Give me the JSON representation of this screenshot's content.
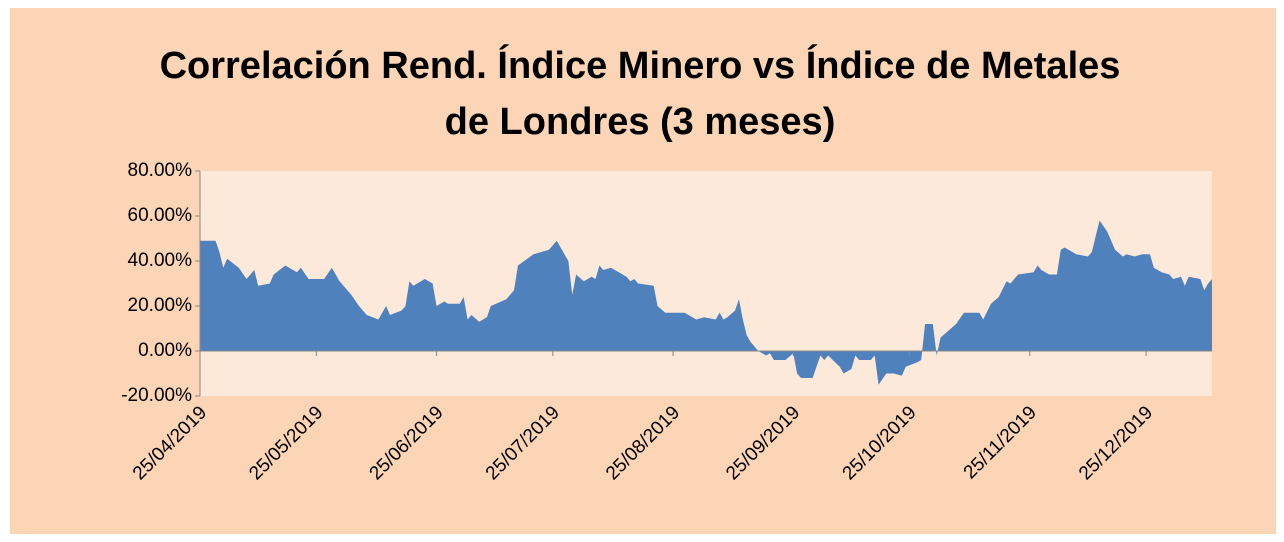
{
  "chart_data": {
    "type": "area",
    "title": "Correlación Rend. Índice Minero vs Índice de Metales de Londres (3 meses)",
    "color": "#4F81BD",
    "x": [
      "25/04/2019",
      "29/04/2019",
      "30/04/2019",
      "01/05/2019",
      "02/05/2019",
      "05/05/2019",
      "07/05/2019",
      "09/05/2019",
      "10/05/2019",
      "13/05/2019",
      "14/05/2019",
      "17/05/2019",
      "20/05/2019",
      "21/05/2019",
      "23/05/2019",
      "25/05/2019",
      "27/05/2019",
      "29/05/2019",
      "31/05/2019",
      "03/06/2019",
      "05/06/2019",
      "07/06/2019",
      "10/06/2019",
      "12/06/2019",
      "13/06/2019",
      "16/06/2019",
      "17/06/2019",
      "18/06/2019",
      "19/06/2019",
      "22/06/2019",
      "24/06/2019",
      "25/06/2019",
      "27/06/2019",
      "28/06/2019",
      "01/07/2019",
      "02/07/2019",
      "03/07/2019",
      "04/07/2019",
      "06/07/2019",
      "08/07/2019",
      "09/07/2019",
      "13/07/2019",
      "15/07/2019",
      "16/07/2019",
      "20/07/2019",
      "24/07/2019",
      "26/07/2019",
      "29/07/2019",
      "30/07/2019",
      "31/07/2019",
      "02/08/2019",
      "04/08/2019",
      "05/08/2019",
      "06/08/2019",
      "07/08/2019",
      "09/08/2019",
      "11/08/2019",
      "13/08/2019",
      "14/08/2019",
      "15/08/2019",
      "16/08/2019",
      "20/08/2019",
      "21/08/2019",
      "23/08/2019",
      "28/08/2019",
      "31/08/2019",
      "02/09/2019",
      "05/09/2019",
      "06/09/2019",
      "07/09/2019",
      "08/09/2019",
      "10/09/2019",
      "11/09/2019",
      "12/09/2019",
      "13/09/2019",
      "14/09/2019",
      "16/09/2019",
      "18/09/2019",
      "19/09/2019",
      "20/09/2019",
      "23/09/2019",
      "25/09/2019",
      "26/09/2019",
      "27/09/2019",
      "30/09/2019",
      "02/10/2019",
      "03/10/2019",
      "04/10/2019",
      "07/10/2019",
      "08/10/2019",
      "10/10/2019",
      "11/10/2019",
      "12/10/2019",
      "15/10/2019",
      "16/10/2019",
      "17/10/2019",
      "19/10/2019",
      "21/10/2019",
      "23/10/2019",
      "24/10/2019",
      "27/10/2019",
      "28/10/2019",
      "29/10/2019",
      "31/10/2019",
      "01/11/2019",
      "02/11/2019",
      "04/11/2019",
      "06/11/2019",
      "08/11/2019",
      "12/11/2019",
      "13/11/2019",
      "15/11/2019",
      "17/11/2019",
      "19/11/2019",
      "20/11/2019",
      "22/11/2019",
      "26/11/2019",
      "27/11/2019",
      "28/11/2019",
      "30/11/2019",
      "02/12/2019",
      "03/12/2019",
      "04/12/2019",
      "07/12/2019",
      "10/12/2019",
      "11/12/2019",
      "13/12/2019",
      "15/12/2019",
      "17/12/2019",
      "19/12/2019",
      "20/12/2019",
      "22/12/2019",
      "24/12/2019",
      "26/12/2019",
      "27/12/2019",
      "29/12/2019",
      "31/12/2019",
      "01/01/2020",
      "03/01/2020",
      "04/01/2020",
      "05/01/2020",
      "08/01/2020",
      "09/01/2020",
      "10/01/2020",
      "11/01/2020"
    ],
    "values": [
      49,
      49,
      44,
      37,
      41,
      37,
      32,
      36,
      29,
      30,
      34,
      38,
      35,
      37,
      32,
      32,
      32,
      37,
      31,
      25,
      20,
      16,
      14,
      20,
      16,
      18,
      20,
      31,
      29,
      32,
      30,
      20,
      22,
      21,
      21,
      24,
      14,
      16,
      13,
      15,
      20,
      23,
      27,
      38,
      43,
      45,
      49,
      40,
      25,
      34,
      31,
      33,
      32,
      38,
      36,
      37,
      35,
      33,
      31,
      32,
      30,
      29,
      20,
      17,
      17,
      14,
      15,
      14,
      17,
      14,
      15,
      18,
      23,
      14,
      7,
      4,
      0,
      -2,
      -1,
      -4,
      -4,
      -1,
      -10,
      -12,
      -12,
      -2,
      -4,
      -2,
      -7,
      -10,
      -8,
      -2,
      -4,
      -4,
      -2,
      -15,
      -10,
      -10,
      -11,
      -7,
      -5,
      -4,
      12,
      12,
      -2,
      6,
      9,
      12,
      17,
      17,
      14,
      21,
      24,
      31,
      30,
      34,
      35,
      38,
      36,
      34,
      34,
      45,
      46,
      43,
      42,
      44,
      58,
      53,
      45,
      42,
      43,
      42,
      43,
      43,
      37,
      35,
      34,
      32,
      33,
      29,
      33,
      32,
      27,
      30,
      32
    ],
    "xlim": [
      "25/04/2019",
      "11/01/2020"
    ],
    "xticks": [
      "25/04/2019",
      "25/05/2019",
      "25/06/2019",
      "25/07/2019",
      "25/08/2019",
      "25/09/2019",
      "25/10/2019",
      "25/11/2019",
      "25/12/2019"
    ],
    "ylim": [
      -20,
      80
    ],
    "yticks": [
      {
        "value": -20,
        "label": "-20.00%"
      },
      {
        "value": 0,
        "label": "0.00%"
      },
      {
        "value": 20,
        "label": "20.00%"
      },
      {
        "value": 40,
        "label": "40.00%"
      },
      {
        "value": 60,
        "label": "60.00%"
      },
      {
        "value": 80,
        "label": "80.00%"
      }
    ]
  }
}
